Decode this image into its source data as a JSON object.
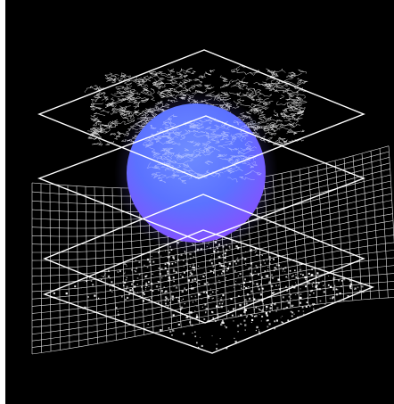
{
  "artwork": {
    "background_color": "#000000",
    "frame_color": "#ffffff",
    "line_color": "#ffffff",
    "sphere": {
      "color_top": "#5b7cff",
      "color_bottom": "#8a4dff",
      "glow": "#7a6cff"
    },
    "planes": [
      {
        "name": "top-plane",
        "content": "contour-map"
      },
      {
        "name": "upper-middle-plane",
        "content": "empty"
      },
      {
        "name": "lower-middle-plane",
        "content": "wave-mesh"
      },
      {
        "name": "bottom-plane",
        "content": "particle-scatter"
      }
    ]
  }
}
